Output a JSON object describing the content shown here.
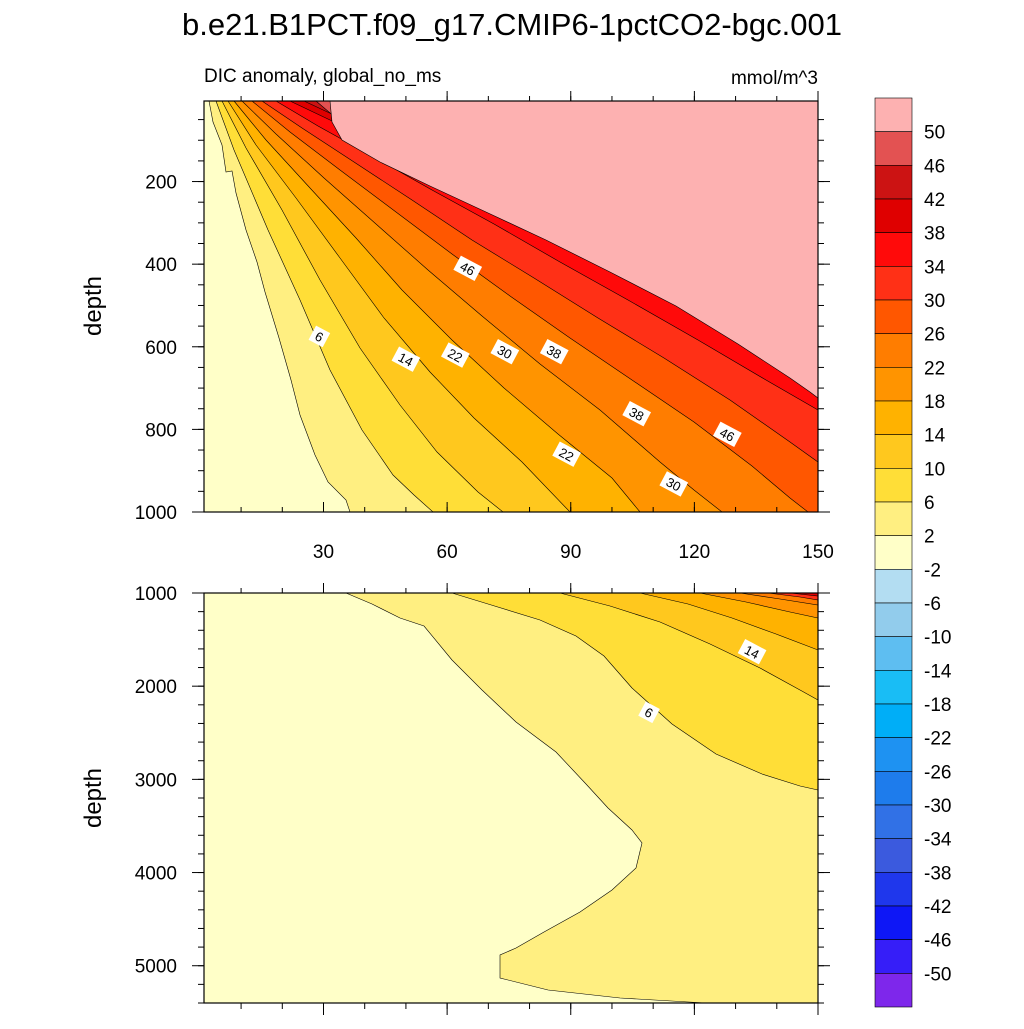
{
  "chart_data": [
    {
      "type": "contour",
      "panel": "upper",
      "title": "b.e21.B1PCT.f09_g17.CMIP6-1pctCO2-bgc.001",
      "subtitle_left": "DIC anomaly, global_no_ms",
      "subtitle_right": "mmol/m^3",
      "xlabel": "",
      "ylabel": "depth",
      "xlim": [
        1,
        150
      ],
      "ylim": [
        5,
        1000
      ],
      "y_reversed": true,
      "xticks": [
        30,
        60,
        90,
        120,
        150
      ],
      "yticks": [
        200,
        400,
        600,
        800,
        1000
      ],
      "contour_interval": 4,
      "contour_labels": [
        {
          "value": "6",
          "x": 29,
          "y": 575
        },
        {
          "value": "14",
          "x": 50,
          "y": 630
        },
        {
          "value": "22",
          "x": 62,
          "y": 620
        },
        {
          "value": "30",
          "x": 74,
          "y": 612
        },
        {
          "value": "38",
          "x": 86,
          "y": 612
        },
        {
          "value": "46",
          "x": 65,
          "y": 410
        },
        {
          "value": "38",
          "x": 106,
          "y": 762
        },
        {
          "value": "46",
          "x": 128,
          "y": 812
        },
        {
          "value": "22",
          "x": 89,
          "y": 860
        },
        {
          "value": "30",
          "x": 115,
          "y": 932
        }
      ]
    },
    {
      "type": "contour",
      "panel": "lower",
      "xlabel": "",
      "ylabel": "depth",
      "xlim": [
        1,
        150
      ],
      "ylim": [
        1000,
        5400
      ],
      "y_reversed": true,
      "yticks": [
        1000,
        2000,
        3000,
        4000,
        5000
      ],
      "contour_labels": [
        {
          "value": "14",
          "x": 134,
          "y": 1630
        },
        {
          "value": "6",
          "x": 109,
          "y": 2280
        }
      ]
    },
    {
      "type": "colorbar",
      "levels": [
        50,
        46,
        42,
        38,
        34,
        30,
        26,
        22,
        18,
        14,
        10,
        6,
        2,
        -2,
        -6,
        -10,
        -14,
        -18,
        -22,
        -26,
        -30,
        -34,
        -38,
        -42,
        -46,
        -50
      ],
      "colors": [
        "#FDB1B1",
        "#E35252",
        "#CC1313",
        "#DF0000",
        "#FF0A0A",
        "#FF3016",
        "#FF5700",
        "#FF7D00",
        "#FF9400",
        "#FFB200",
        "#FFC81E",
        "#FFDE37",
        "#FFEF81",
        "#FFFFC8",
        "#B3DDF2",
        "#92CCEC",
        "#5EBEF1",
        "#19BDF5",
        "#00AEF7",
        "#1E92F2",
        "#1E7CEC",
        "#3171E6",
        "#3B5ADE",
        "#1F37EC",
        "#0E17F6",
        "#361EF8",
        "#7E27EB"
      ]
    }
  ],
  "figure": {
    "title": "b.e21.B1PCT.f09_g17.CMIP6-1pctCO2-bgc.001",
    "subtitle_left": "DIC anomaly, global_no_ms",
    "subtitle_right": "mmol/m^3"
  }
}
